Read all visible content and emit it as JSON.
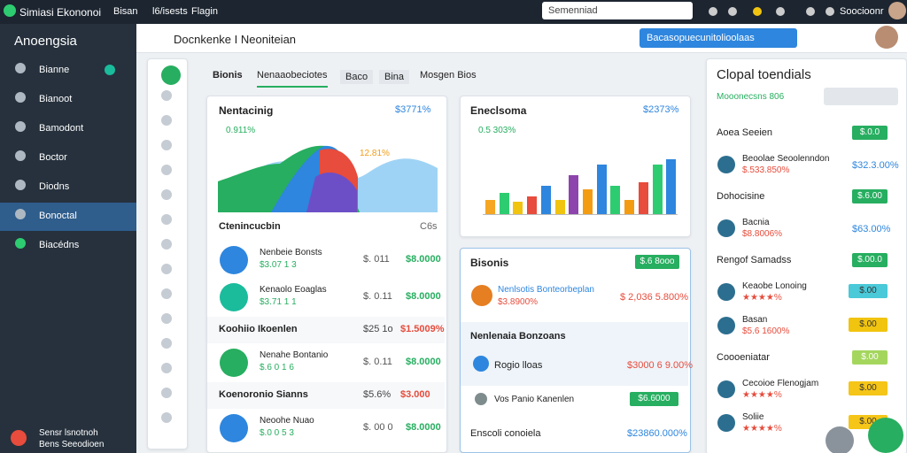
{
  "topbar": {
    "brand": "Simiasi Ekononoi",
    "nav": [
      "Bisan",
      "l6/isests",
      "Flagin"
    ],
    "search": "Semenniad",
    "user": "Soocioonr"
  },
  "sidebar": {
    "title": "Anoengsia",
    "items": [
      "Bianne",
      "Bianoot",
      "Bamodont",
      "Boctor",
      "Diodns",
      "Bonoctal",
      "Biacédns"
    ],
    "footer": [
      "Sensr lsnotnoh",
      "Bens Seeodioen"
    ]
  },
  "header": {
    "title": "Docnkenke I Neoniteian",
    "button": "Bacasopuecunitolioolaas"
  },
  "tabs": [
    "Bionis",
    "Nenaaobeciotes",
    "Baco",
    "Bina",
    "Mosgen Bios"
  ],
  "card1": {
    "title": "Nentacinig",
    "value": "$3771%",
    "rating": "0.911%",
    "annotation": "12.81%",
    "sections": [
      {
        "title": "Ctenincucbin",
        "meta": "C6s",
        "rows": [
          {
            "name": "Nenbeie Bonsts",
            "sub": "$3.07 1 3",
            "mid": "$. 011",
            "val": "$8.0000"
          },
          {
            "name": "Kenaolo Eoaglas",
            "sub": "$3.71 1 1",
            "mid": "$. 0.11",
            "val": "$8.0000"
          }
        ]
      },
      {
        "title": "Koohiio Ikoenlen",
        "mid": "$25 1o",
        "val": "$1.5009%",
        "rows": [
          {
            "name": "Nenahe Bontanio",
            "sub": "$.6 0 1 6",
            "mid": "$. 0.11",
            "val": "$8.0000"
          }
        ]
      },
      {
        "title": "Koenoronio Sianns",
        "mid": "$5.6%",
        "val": "$3.000",
        "rows": [
          {
            "name": "Neoohe Nuao",
            "sub": "$.0 0 5 3",
            "mid": "$. 00 0",
            "val": "$8.0000"
          }
        ]
      }
    ]
  },
  "card2": {
    "title": "Eneclsoma",
    "value": "$2373%",
    "rating": "0.5 303%",
    "chart_data": {
      "type": "bar",
      "values": [
        20,
        30,
        18,
        25,
        40,
        20,
        55,
        35,
        70,
        40,
        20,
        45,
        70,
        78
      ],
      "colors": [
        "#f5a623",
        "#2ecc71",
        "#f1c40f",
        "#e74c3c",
        "#2e86de",
        "#f1c40f",
        "#8e44ad",
        "#f39c12",
        "#2e86de",
        "#2ecc71",
        "#f39c12",
        "#e74c3c",
        "#2ecc71",
        "#2e86de"
      ]
    }
  },
  "card3": {
    "title": "Bisonis",
    "button": "$.6 8ooo",
    "item1": {
      "name": "Nenlsotis Bonteorbeplan",
      "sub": "$3.8900%",
      "val": "$ 2,036 5.800%"
    },
    "section": "Nenlenaia Bonzoans",
    "item2": {
      "name": "Rogio lloas",
      "val": "$3000 6 9.00%"
    },
    "item3": {
      "name": "Vos Panio Kanenlen",
      "button": "$6.6000"
    },
    "footer": {
      "name": "Enscoli conoiela",
      "val": "$23860.000%"
    }
  },
  "right": {
    "title": "Clopal toendials",
    "sub": "Mooonecsns 806",
    "rows": [
      {
        "kind": "section",
        "name": "Aoea Seeien",
        "button": "$.0.0"
      },
      {
        "kind": "item",
        "name": "Beoolae Seoolenndon",
        "sub": "$.533.850%",
        "val": "$32.3.00%"
      },
      {
        "kind": "section",
        "name": "Dohocisine",
        "button": "$.6.00"
      },
      {
        "kind": "item",
        "name": "Bacnia",
        "sub": "$8.8006%",
        "val": "$63.00%"
      },
      {
        "kind": "section",
        "name": "Rengof Samadss",
        "button": "$.00.0"
      },
      {
        "kind": "item",
        "name": "Keaobe Lonoing",
        "sub": "★★★★%",
        "button": "$.00"
      },
      {
        "kind": "item",
        "name": "Basan",
        "sub": "$5.6 1600%",
        "button": "$.00"
      },
      {
        "kind": "section",
        "name": "Coooeniatar",
        "button": "$.00"
      },
      {
        "kind": "item",
        "name": "Cecoioe Flenogjam",
        "sub": "★★★★%",
        "button": "$.00"
      },
      {
        "kind": "item",
        "name": "Soliie",
        "sub": "★★★★%",
        "button": "$.00"
      }
    ]
  }
}
